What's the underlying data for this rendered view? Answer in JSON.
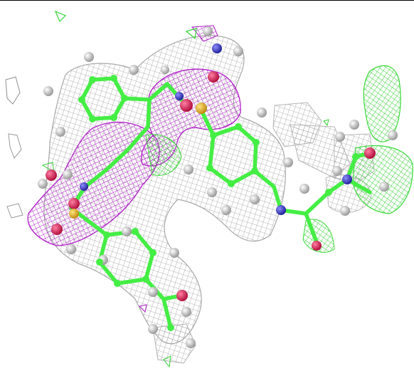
{
  "scene": {
    "kind": "electron density map of a bound ligand",
    "colors": {
      "background": "#ffffff",
      "mesh_gray": "#b8b8b8",
      "mesh_magenta": "#b01ec8",
      "mesh_green": "#33e633",
      "carbon": "#44ee44",
      "hydrogen": "#e3e3e3",
      "oxygen": "#e8245c",
      "nitrogen": "#3a3adf",
      "sulfur": "#f0c02c"
    }
  }
}
